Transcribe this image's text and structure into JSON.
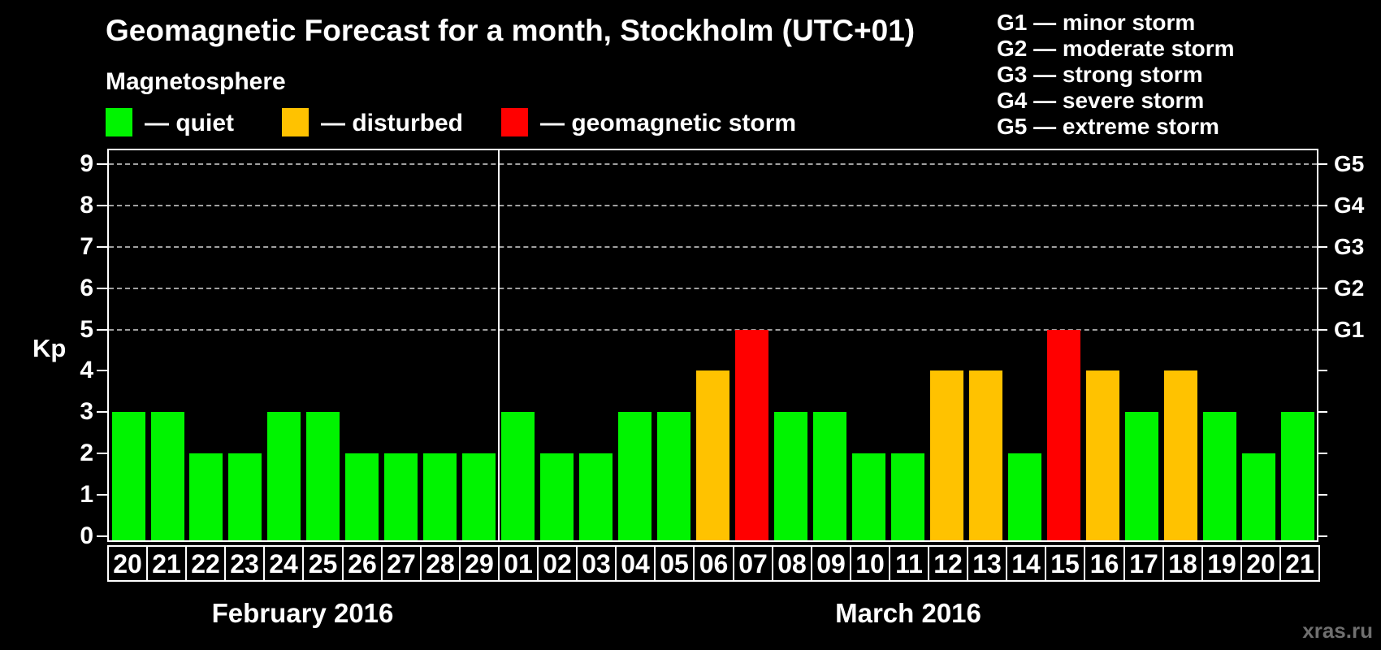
{
  "header": {
    "title": "Geomagnetic Forecast for a month, Stockholm (UTC+01)",
    "subtitle": "Magnetosphere"
  },
  "legend": {
    "items": [
      {
        "status": "quiet",
        "label": "— quiet"
      },
      {
        "status": "disturbed",
        "label": "— disturbed"
      },
      {
        "status": "storm",
        "label": "— geomagnetic storm"
      }
    ]
  },
  "g_scale_legend": {
    "items": [
      "G1 — minor storm",
      "G2 — moderate storm",
      "G3 — strong storm",
      "G4 — severe storm",
      "G5 — extreme storm"
    ]
  },
  "watermark": "xras.ru",
  "colors": {
    "background": "#000000",
    "axis": "#ffffff",
    "grid": "#a0a0a0",
    "text": "#ffffff",
    "watermark_text": "#6f6f6f",
    "quiet": "#00f400",
    "disturbed": "#ffc200",
    "storm": "#ff0000"
  },
  "chart_data": {
    "type": "bar",
    "title": "Geomagnetic Forecast for a month, Stockholm (UTC+01)",
    "subtitle": "Magnetosphere",
    "xlabel": "",
    "ylabel": "Kp",
    "ylim": [
      0,
      9.4
    ],
    "yticks": [
      0,
      1,
      2,
      3,
      4,
      5,
      6,
      7,
      8,
      9
    ],
    "grid": "dashed horizontal lines at Kp 5 through 9 only",
    "gridlines_kp": [
      5,
      6,
      7,
      8,
      9
    ],
    "right_axis_labels": [
      {
        "label": "G1",
        "kp": 5
      },
      {
        "label": "G2",
        "kp": 6
      },
      {
        "label": "G3",
        "kp": 7
      },
      {
        "label": "G4",
        "kp": 8
      },
      {
        "label": "G5",
        "kp": 9
      }
    ],
    "legend_position": "top-left above plot",
    "months": [
      {
        "label": "February 2016",
        "days": 10
      },
      {
        "label": "March 2016",
        "days": 21
      }
    ],
    "categories": [
      "20",
      "21",
      "22",
      "23",
      "24",
      "25",
      "26",
      "27",
      "28",
      "29",
      "01",
      "02",
      "03",
      "04",
      "05",
      "06",
      "07",
      "08",
      "09",
      "10",
      "11",
      "12",
      "13",
      "14",
      "15",
      "16",
      "17",
      "18",
      "19",
      "20",
      "21"
    ],
    "values": [
      3,
      3,
      2,
      2,
      3,
      3,
      2,
      2,
      2,
      2,
      3,
      2,
      2,
      3,
      3,
      4,
      5,
      3,
      3,
      2,
      2,
      4,
      4,
      2,
      5,
      4,
      3,
      4,
      3,
      2,
      3
    ],
    "statuses": [
      "quiet",
      "quiet",
      "quiet",
      "quiet",
      "quiet",
      "quiet",
      "quiet",
      "quiet",
      "quiet",
      "quiet",
      "quiet",
      "quiet",
      "quiet",
      "quiet",
      "quiet",
      "disturbed",
      "storm",
      "quiet",
      "quiet",
      "quiet",
      "quiet",
      "disturbed",
      "disturbed",
      "quiet",
      "storm",
      "disturbed",
      "quiet",
      "disturbed",
      "quiet",
      "quiet",
      "quiet"
    ]
  }
}
